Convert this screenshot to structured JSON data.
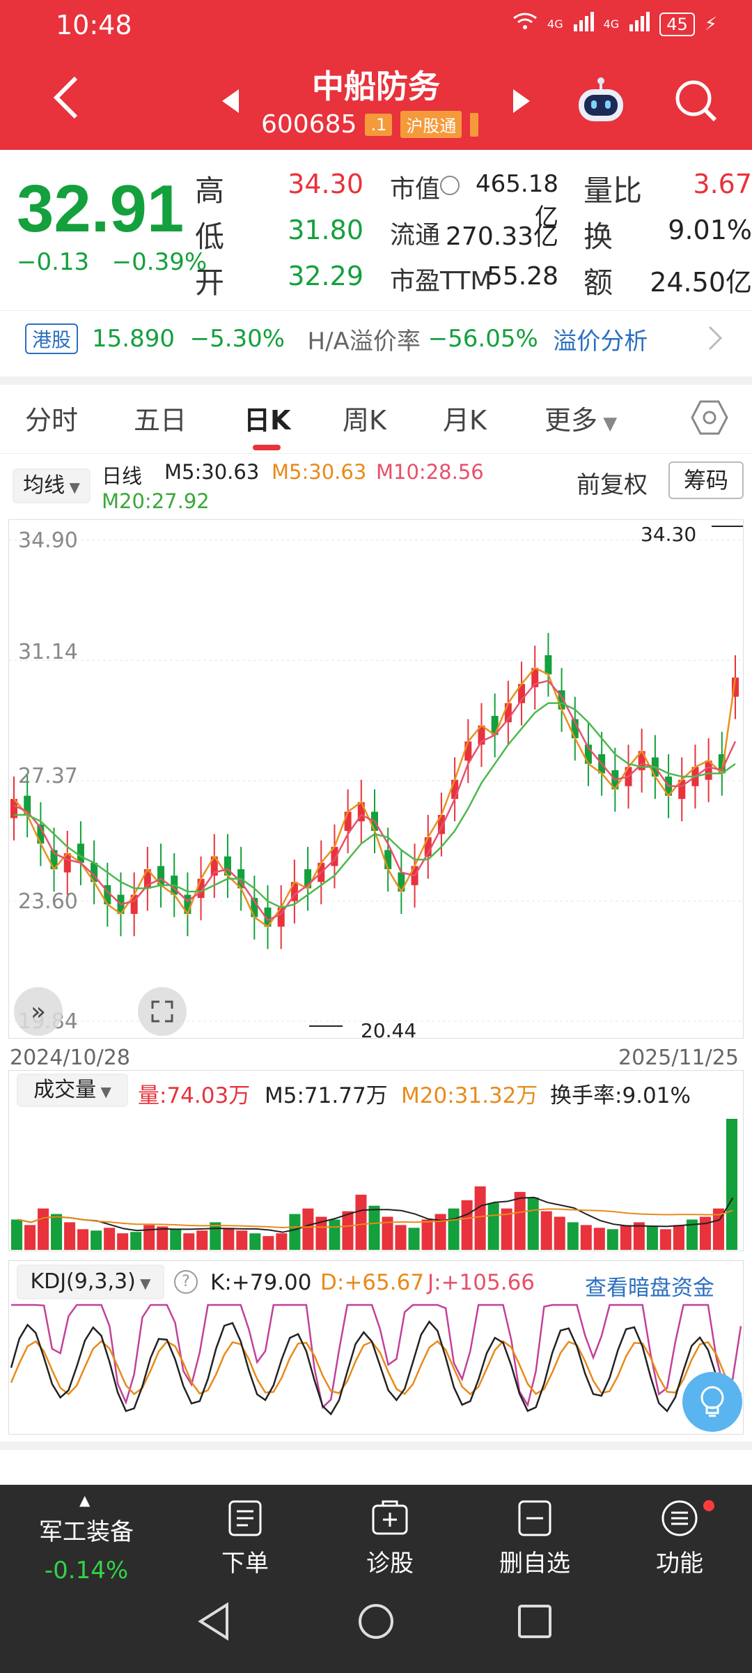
{
  "status": {
    "time": "10:48",
    "net1": "4G",
    "net2": "4G",
    "battery": "45"
  },
  "header": {
    "title": "中船防务",
    "code": "600685",
    "tag1": ".1",
    "tag2": "沪股通"
  },
  "quote": {
    "price": "32.91",
    "change": "−0.13",
    "change_pct": "−0.39%",
    "high_label": "高",
    "high": "34.30",
    "low_label": "低",
    "low": "31.80",
    "open_label": "开",
    "open": "32.29",
    "mcap_label": "市值",
    "mcap": "465.18亿",
    "float_label": "流通",
    "float": "270.33亿",
    "pe_label": "市盈TTM",
    "pe": "55.28",
    "vr_label": "量比",
    "vr": "3.67",
    "turn_label": "换",
    "turn": "9.01%",
    "amt_label": "额",
    "amt": "24.50亿"
  },
  "hk": {
    "tag": "港股",
    "price": "15.890",
    "pct": "−5.30%",
    "premium_label": "H/A溢价率",
    "premium": "−56.05%",
    "link": "溢价分析"
  },
  "tabs": [
    "分时",
    "五日",
    "日K",
    "周K",
    "月K",
    "更多"
  ],
  "ma": {
    "selector": "均线",
    "period": "日线",
    "m5a": "M5:30.63",
    "m5b": "M5:30.63",
    "m10": "M10:28.56",
    "m20": "M20:27.92",
    "adjust": "前复权",
    "chips": "筹码"
  },
  "chart_data": [
    {
      "type": "line",
      "title": "",
      "x_start": "2024/10/28",
      "x_end": "2025/11/25",
      "y_ticks": [
        "34.90",
        "31.14",
        "27.37",
        "23.60",
        "19.84"
      ],
      "ylim": [
        19.84,
        34.9
      ],
      "max_label": "34.30",
      "min_label": "20.44",
      "series": [
        {
          "name": "M5",
          "values": [
            26.8,
            26.3,
            25.4,
            24.6,
            25.1,
            24.8,
            24.2,
            23.5,
            23.2,
            23.8,
            24.6,
            24.1,
            23.8,
            23.2,
            24.3,
            25.0,
            24.4,
            24.0,
            23.1,
            22.8,
            23.4,
            24.2,
            24.0,
            24.8,
            25.3,
            26.4,
            26.7,
            25.8,
            24.6,
            23.9,
            24.7,
            25.6,
            26.3,
            27.4,
            28.6,
            29.1,
            28.8,
            29.8,
            30.4,
            30.9,
            30.7,
            29.6,
            28.7,
            27.9,
            27.6,
            27.1,
            27.8,
            28.3,
            27.5,
            26.9,
            27.4,
            27.8,
            28.0,
            27.6,
            30.6
          ]
        },
        {
          "name": "M10",
          "values": [
            26.6,
            26.4,
            25.9,
            25.1,
            24.9,
            24.8,
            24.4,
            23.9,
            23.5,
            23.6,
            24.1,
            24.3,
            24.0,
            23.6,
            23.9,
            24.5,
            24.6,
            24.2,
            23.6,
            23.0,
            23.2,
            23.8,
            24.1,
            24.5,
            24.9,
            25.7,
            26.3,
            26.1,
            25.4,
            24.5,
            24.4,
            25.1,
            25.9,
            26.8,
            27.9,
            28.6,
            28.8,
            29.3,
            29.9,
            30.4,
            30.5,
            30.0,
            29.2,
            28.4,
            27.9,
            27.4,
            27.5,
            27.9,
            27.8,
            27.2,
            27.2,
            27.5,
            27.8,
            27.7,
            28.6
          ]
        },
        {
          "name": "M20",
          "values": [
            26.3,
            26.3,
            26.1,
            25.7,
            25.3,
            25.0,
            24.8,
            24.5,
            24.2,
            24.0,
            24.0,
            24.1,
            24.1,
            23.9,
            23.9,
            24.1,
            24.3,
            24.3,
            24.0,
            23.6,
            23.4,
            23.5,
            23.8,
            24.1,
            24.4,
            24.9,
            25.4,
            25.7,
            25.6,
            25.2,
            24.9,
            24.9,
            25.3,
            25.8,
            26.5,
            27.3,
            27.9,
            28.5,
            29.0,
            29.5,
            29.8,
            29.8,
            29.6,
            29.2,
            28.7,
            28.2,
            27.9,
            27.8,
            27.8,
            27.6,
            27.5,
            27.5,
            27.6,
            27.6,
            27.9
          ]
        }
      ]
    },
    {
      "type": "bar",
      "title": "",
      "vol_label": "成交量",
      "vol": "量:74.03万",
      "vol_m5": "M5:71.77万",
      "vol_m20": "M20:31.32万",
      "turn": "换手率:9.01%",
      "values": [
        22,
        18,
        30,
        26,
        20,
        15,
        14,
        16,
        12,
        13,
        18,
        17,
        15,
        12,
        14,
        20,
        16,
        14,
        12,
        10,
        12,
        26,
        30,
        24,
        22,
        28,
        40,
        32,
        24,
        18,
        16,
        22,
        26,
        30,
        36,
        46,
        34,
        30,
        42,
        38,
        28,
        24,
        20,
        18,
        16,
        15,
        18,
        20,
        17,
        15,
        18,
        22,
        24,
        30,
        95
      ]
    },
    {
      "type": "line",
      "title": "",
      "label": "KDJ(9,3,3)",
      "k": "K:+79.00",
      "d": "D:+65.67",
      "j": "J:+105.66",
      "link": "查看暗盘资金"
    }
  ],
  "nav": {
    "sector": "军工装备",
    "sector_pct": "-0.14%",
    "order": "下单",
    "diagnose": "诊股",
    "remove": "删自选",
    "more": "功能"
  }
}
